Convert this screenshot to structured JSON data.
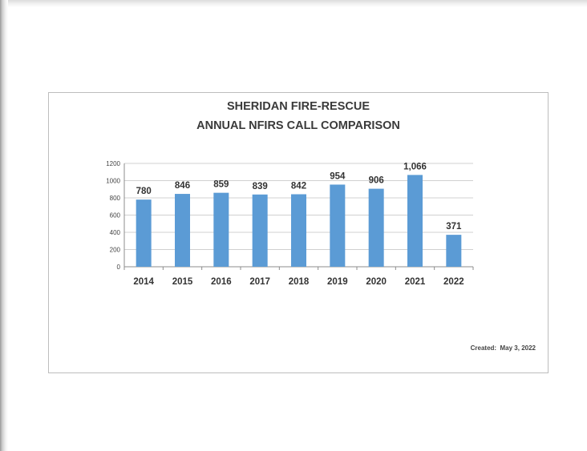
{
  "chart_data": {
    "type": "bar",
    "title": "SHERIDAN FIRE-RESCUE",
    "subtitle": "ANNUAL NFIRS CALL COMPARISON",
    "categories": [
      "2014",
      "2015",
      "2016",
      "2017",
      "2018",
      "2019",
      "2020",
      "2021",
      "2022"
    ],
    "values": [
      780,
      846,
      859,
      839,
      842,
      954,
      906,
      1066,
      371
    ],
    "data_labels": [
      "780",
      "846",
      "859",
      "839",
      "842",
      "954",
      "906",
      "1,066",
      "371"
    ],
    "ylim": [
      0,
      1200
    ],
    "yticks": [
      0,
      200,
      400,
      600,
      800,
      1000,
      1200
    ],
    "xlabel": "",
    "ylabel": "",
    "grid": true,
    "legend": "none",
    "bar_color": "#5b9bd5"
  },
  "footer": {
    "created_label": "Created:",
    "created_date": "May 3, 2022"
  }
}
